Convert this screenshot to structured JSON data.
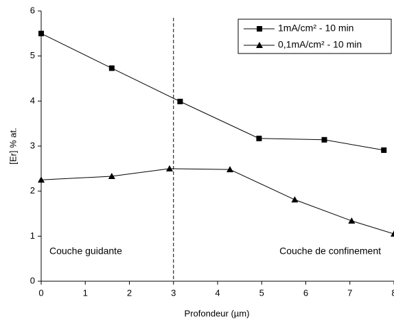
{
  "chart_data": {
    "type": "line",
    "x_label": "Profondeur (µm)",
    "y_label": "[Er]  % at.",
    "xlim": [
      0,
      8
    ],
    "ylim": [
      0,
      6
    ],
    "xticks": [
      0,
      1,
      2,
      3,
      4,
      5,
      6,
      7,
      8
    ],
    "yticks": [
      0,
      1,
      2,
      3,
      4,
      5,
      6
    ],
    "vline": 3,
    "annotations": [
      "Couche guidante",
      "Couche de confinement"
    ],
    "legend": "top-right",
    "series": [
      {
        "name": "1mA/cm² - 10 min",
        "color": "#000000",
        "marker": "square",
        "x": [
          0,
          1.6,
          3.15,
          4.94,
          6.42,
          7.77
        ],
        "values": [
          5.5,
          4.73,
          3.99,
          3.17,
          3.14,
          2.91
        ]
      },
      {
        "name": "0,1mA/cm² - 10 min",
        "color": "#000000",
        "marker": "triangle",
        "x": [
          0,
          1.6,
          2.91,
          4.28,
          5.75,
          7.04,
          8
        ],
        "values": [
          2.25,
          2.33,
          2.5,
          2.48,
          1.81,
          1.34,
          1.05
        ]
      }
    ]
  }
}
